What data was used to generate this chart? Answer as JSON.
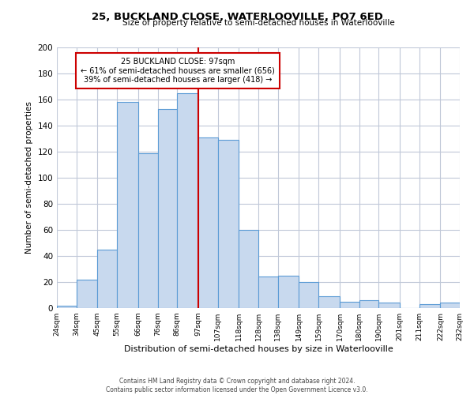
{
  "title": "25, BUCKLAND CLOSE, WATERLOOVILLE, PO7 6ED",
  "subtitle": "Size of property relative to semi-detached houses in Waterlooville",
  "xlabel": "Distribution of semi-detached houses by size in Waterlooville",
  "ylabel": "Number of semi-detached properties",
  "bins": [
    24,
    34,
    45,
    55,
    66,
    76,
    86,
    97,
    107,
    118,
    128,
    138,
    149,
    159,
    170,
    180,
    190,
    201,
    211,
    222,
    232
  ],
  "counts": [
    2,
    22,
    45,
    158,
    119,
    153,
    165,
    131,
    129,
    60,
    24,
    25,
    20,
    9,
    5,
    6,
    4,
    0,
    3,
    4
  ],
  "tick_labels": [
    "24sqm",
    "34sqm",
    "45sqm",
    "55sqm",
    "66sqm",
    "76sqm",
    "86sqm",
    "97sqm",
    "107sqm",
    "118sqm",
    "128sqm",
    "138sqm",
    "149sqm",
    "159sqm",
    "170sqm",
    "180sqm",
    "190sqm",
    "201sqm",
    "211sqm",
    "222sqm",
    "232sqm"
  ],
  "bar_color": "#c8d9ee",
  "bar_edge_color": "#5b9bd5",
  "vline_x": 97,
  "vline_color": "#cc0000",
  "annotation_text_line1": "25 BUCKLAND CLOSE: 97sqm",
  "annotation_text_line2": "← 61% of semi-detached houses are smaller (656)",
  "annotation_text_line3": "39% of semi-detached houses are larger (418) →",
  "annotation_box_edge_color": "#cc0000",
  "ylim": [
    0,
    200
  ],
  "yticks": [
    0,
    20,
    40,
    60,
    80,
    100,
    120,
    140,
    160,
    180,
    200
  ],
  "footer_line1": "Contains HM Land Registry data © Crown copyright and database right 2024.",
  "footer_line2": "Contains public sector information licensed under the Open Government Licence v3.0.",
  "background_color": "#ffffff",
  "grid_color": "#c0c8d8"
}
